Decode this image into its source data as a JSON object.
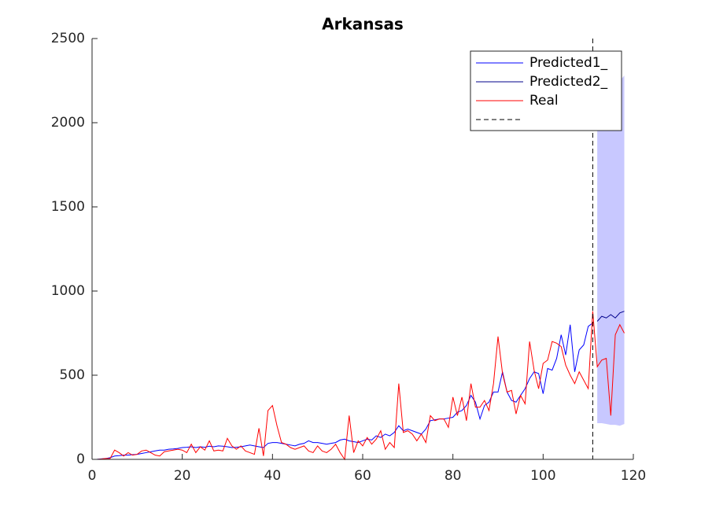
{
  "chart_data": {
    "type": "line",
    "title": "Arkansas",
    "xlim": [
      0,
      120
    ],
    "ylim": [
      0,
      2500
    ],
    "xticks": [
      0,
      20,
      40,
      60,
      80,
      100,
      120
    ],
    "yticks": [
      0,
      500,
      1000,
      1500,
      2000,
      2500
    ],
    "legend_position": "northeast",
    "series": [
      {
        "name": "Predicted1_",
        "color": "#0000ff",
        "x": [
          1,
          2,
          3,
          4,
          5,
          6,
          7,
          8,
          9,
          10,
          11,
          12,
          13,
          14,
          15,
          16,
          17,
          18,
          19,
          20,
          21,
          22,
          23,
          24,
          25,
          26,
          27,
          28,
          29,
          30,
          31,
          32,
          33,
          34,
          35,
          36,
          37,
          38,
          39,
          40,
          41,
          42,
          43,
          44,
          45,
          46,
          47,
          48,
          49,
          50,
          51,
          52,
          53,
          54,
          55,
          56,
          57,
          58,
          59,
          60,
          61,
          62,
          63,
          64,
          65,
          66,
          67,
          68,
          69,
          70,
          71,
          72,
          73,
          74,
          75,
          76,
          77,
          78,
          79,
          80,
          81,
          82,
          83,
          84,
          85,
          86,
          87,
          88,
          89,
          90,
          91,
          92,
          93,
          94,
          95,
          96,
          97,
          98,
          99,
          100,
          101,
          102,
          103,
          104,
          105,
          106,
          107,
          108,
          109,
          110,
          111
        ],
        "values": [
          0,
          3,
          5,
          10,
          20,
          22,
          25,
          25,
          28,
          30,
          35,
          40,
          45,
          50,
          55,
          55,
          60,
          62,
          65,
          70,
          72,
          75,
          70,
          75,
          72,
          78,
          75,
          80,
          78,
          75,
          70,
          72,
          75,
          80,
          85,
          80,
          75,
          70,
          95,
          100,
          100,
          95,
          90,
          85,
          80,
          90,
          95,
          110,
          100,
          100,
          95,
          90,
          95,
          100,
          115,
          120,
          110,
          105,
          100,
          110,
          120,
          115,
          140,
          130,
          150,
          140,
          160,
          200,
          170,
          180,
          170,
          160,
          150,
          180,
          230,
          235,
          240,
          240,
          245,
          250,
          280,
          290,
          320,
          380,
          340,
          240,
          320,
          340,
          400,
          400,
          520,
          400,
          350,
          340,
          380,
          420,
          480,
          520,
          510,
          390,
          540,
          530,
          600,
          740,
          620,
          800,
          520,
          650,
          680,
          790,
          810
        ]
      },
      {
        "name": "Predicted2_",
        "color": "#00008b",
        "x": [
          112,
          113,
          114,
          115,
          116,
          117,
          118
        ],
        "values": [
          820,
          850,
          840,
          860,
          840,
          870,
          880
        ]
      },
      {
        "name": "Real",
        "color": "#ff0000",
        "x": [
          1,
          2,
          3,
          4,
          5,
          6,
          7,
          8,
          9,
          10,
          11,
          12,
          13,
          14,
          15,
          16,
          17,
          18,
          19,
          20,
          21,
          22,
          23,
          24,
          25,
          26,
          27,
          28,
          29,
          30,
          31,
          32,
          33,
          34,
          35,
          36,
          37,
          38,
          39,
          40,
          41,
          42,
          43,
          44,
          45,
          46,
          47,
          48,
          49,
          50,
          51,
          52,
          53,
          54,
          55,
          56,
          57,
          58,
          59,
          60,
          61,
          62,
          63,
          64,
          65,
          66,
          67,
          68,
          69,
          70,
          71,
          72,
          73,
          74,
          75,
          76,
          77,
          78,
          79,
          80,
          81,
          82,
          83,
          84,
          85,
          86,
          87,
          88,
          89,
          90,
          91,
          92,
          93,
          94,
          95,
          96,
          97,
          98,
          99,
          100,
          101,
          102,
          103,
          104,
          105,
          106,
          107,
          108,
          109,
          110,
          111,
          112,
          113,
          114,
          115,
          116,
          117,
          118
        ],
        "values": [
          0,
          2,
          5,
          5,
          55,
          40,
          20,
          40,
          25,
          30,
          50,
          55,
          40,
          25,
          20,
          45,
          50,
          55,
          60,
          55,
          40,
          90,
          40,
          75,
          55,
          110,
          50,
          55,
          50,
          125,
          80,
          60,
          80,
          50,
          40,
          30,
          185,
          20,
          290,
          320,
          200,
          100,
          90,
          70,
          60,
          70,
          80,
          50,
          40,
          80,
          50,
          40,
          60,
          90,
          40,
          0,
          260,
          40,
          110,
          80,
          130,
          90,
          120,
          170,
          60,
          100,
          70,
          450,
          160,
          170,
          150,
          110,
          150,
          100,
          260,
          230,
          240,
          240,
          190,
          370,
          260,
          370,
          230,
          450,
          310,
          310,
          350,
          290,
          450,
          730,
          510,
          400,
          410,
          270,
          380,
          330,
          700,
          530,
          420,
          570,
          590,
          700,
          690,
          670,
          560,
          500,
          450,
          520,
          470,
          420,
          880,
          550,
          590,
          600,
          260,
          740,
          800,
          750
        ]
      }
    ],
    "band": {
      "color": "#c8c8ff",
      "x": [
        112,
        113,
        114,
        115,
        116,
        117,
        118
      ],
      "lower": [
        215,
        215,
        210,
        205,
        205,
        200,
        210
      ],
      "upper": [
        2000,
        2050,
        2100,
        2150,
        2200,
        2250,
        2280
      ]
    },
    "vline": {
      "x": 111,
      "color": "#000000"
    }
  }
}
